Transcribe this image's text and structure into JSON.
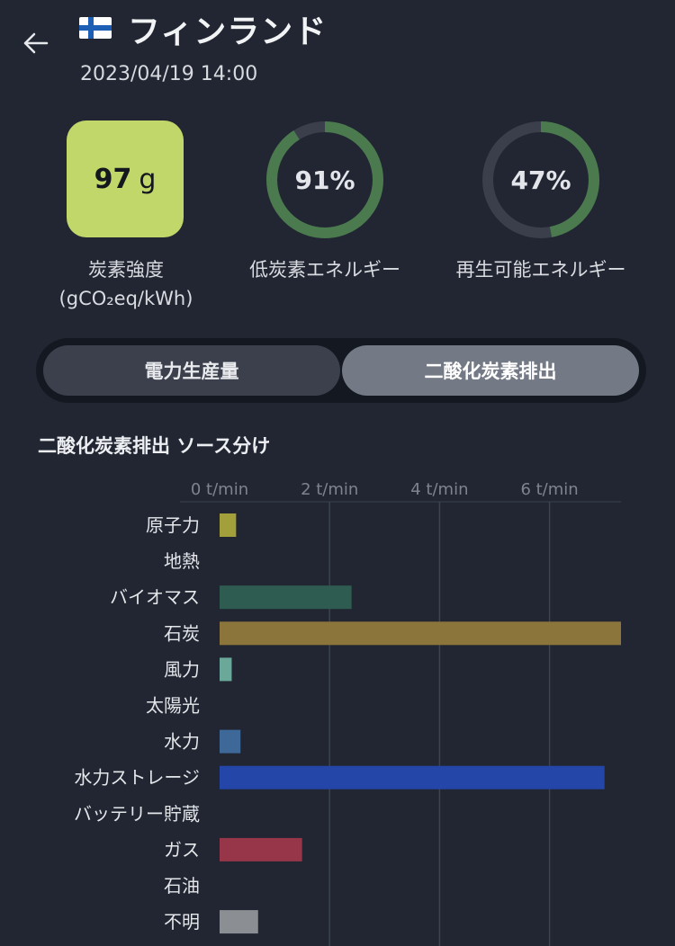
{
  "header": {
    "back_icon": "arrow-left-icon",
    "flag_icon": "finland-flag-icon",
    "title": "フィンランド",
    "timestamp": "2023/04/19 14:00"
  },
  "stats": {
    "carbon_intensity": {
      "value": "97",
      "unit": "g",
      "label_line1": "炭素強度",
      "label_line2": "(gCO₂eq/kWh)",
      "color": "#c2d76a"
    },
    "low_carbon": {
      "value_text": "91%",
      "percent": 91,
      "label": "低炭素エネルギー"
    },
    "renewable": {
      "value_text": "47%",
      "percent": 47,
      "label": "再生可能エネルギー"
    },
    "ring_color": "#4a7a4e",
    "ring_track_color": "#3a3f4b"
  },
  "toggle": {
    "options": [
      "電力生産量",
      "二酸化炭素排出"
    ],
    "selected": "二酸化炭素排出"
  },
  "section_title": "二酸化炭素排出 ソース分け",
  "chart_data": {
    "type": "bar",
    "orientation": "horizontal",
    "title": "二酸化炭素排出 ソース分け",
    "unit": "t/min",
    "x_ticks": [
      "0 t/min",
      "2 t/min",
      "4 t/min",
      "6 t/min"
    ],
    "x_tick_values": [
      0,
      2,
      4,
      6
    ],
    "xlim": [
      0,
      7.3
    ],
    "grid": true,
    "categories": [
      "原子力",
      "地熱",
      "バイオマス",
      "石炭",
      "風力",
      "太陽光",
      "水力",
      "水力ストレージ",
      "バッテリー貯蔵",
      "ガス",
      "石油",
      "不明"
    ],
    "values": [
      0.3,
      0,
      2.4,
      7.3,
      0.22,
      0,
      0.38,
      7.0,
      0,
      1.5,
      0,
      0.7
    ],
    "colors": [
      "#a3a03b",
      "#888888",
      "#2e5c50",
      "#8c753a",
      "#6aa899",
      "#c9b23a",
      "#3e6897",
      "#2346a8",
      "#666666",
      "#973648",
      "#555555",
      "#8b8e93"
    ]
  }
}
